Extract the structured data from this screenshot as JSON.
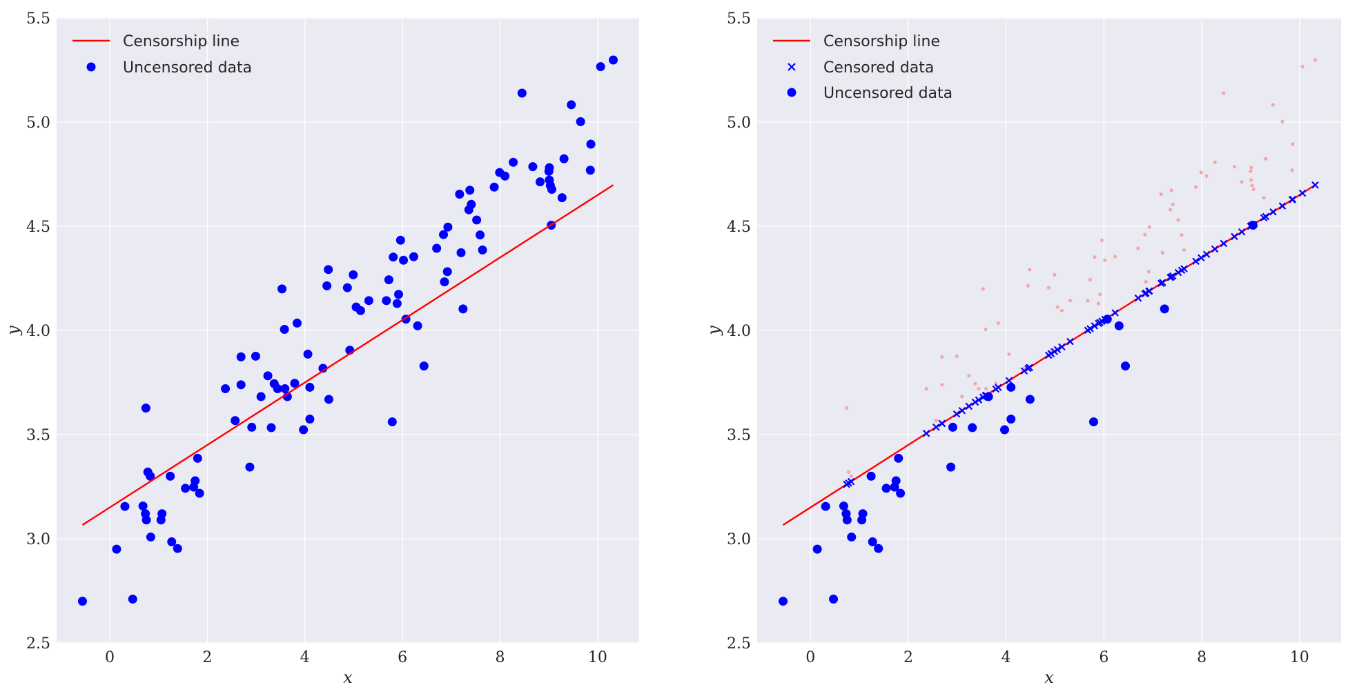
{
  "colors": {
    "background": "#eaeaf2",
    "grid": "#ffffff",
    "line": "#ff0000",
    "points": "#0000ff",
    "faded_points": "#f4a0a0"
  },
  "chart_data": [
    {
      "type": "scatter",
      "panel": "left",
      "xlabel": "x",
      "ylabel": "y",
      "xlim": [
        -1.09,
        10.85
      ],
      "ylim": [
        2.5,
        5.5
      ],
      "xticks": [
        0,
        2,
        4,
        6,
        8,
        10
      ],
      "yticks": [
        2.5,
        3.0,
        3.5,
        4.0,
        4.5,
        5.0,
        5.5
      ],
      "ytick_labels": [
        "2.5",
        "3.0",
        "3.5",
        "4.0",
        "4.5",
        "5.0",
        "5.5"
      ],
      "grid": true,
      "legend_position": "top-left",
      "legend": [
        "Censorship line",
        "Uncensored data"
      ],
      "series": [
        "line",
        "all"
      ]
    },
    {
      "type": "scatter",
      "panel": "right",
      "xlabel": "x",
      "ylabel": "y",
      "xlim": [
        -1.09,
        10.85
      ],
      "ylim": [
        2.5,
        5.5
      ],
      "xticks": [
        0,
        2,
        4,
        6,
        8,
        10
      ],
      "yticks": [
        2.5,
        3.0,
        3.5,
        4.0,
        4.5,
        5.0,
        5.5
      ],
      "ytick_labels": [
        "2.5",
        "3.0",
        "3.5",
        "4.0",
        "4.5",
        "5.0",
        "5.5"
      ],
      "grid": true,
      "legend_position": "top-left",
      "legend": [
        "Censorship line",
        "Censored data",
        "Uncensored data"
      ],
      "series": [
        "line",
        "censored",
        "uncensored",
        "faded_original"
      ]
    }
  ],
  "censorship_line": {
    "intercept": 3.15,
    "slope": 0.15,
    "x_range": [
      -0.56,
      10.32
    ]
  },
  "points": [
    [
      -0.56,
      2.7
    ],
    [
      0.14,
      2.95
    ],
    [
      0.47,
      2.71
    ],
    [
      0.31,
      3.155
    ],
    [
      0.68,
      3.157
    ],
    [
      0.73,
      3.12
    ],
    [
      0.75,
      3.09
    ],
    [
      0.74,
      3.627
    ],
    [
      0.78,
      3.32
    ],
    [
      0.83,
      3.3
    ],
    [
      0.84,
      3.008
    ],
    [
      1.05,
      3.09
    ],
    [
      1.07,
      3.12
    ],
    [
      1.24,
      3.3
    ],
    [
      1.27,
      2.985
    ],
    [
      1.39,
      2.953
    ],
    [
      1.55,
      3.242
    ],
    [
      1.72,
      3.248
    ],
    [
      1.75,
      3.278
    ],
    [
      1.8,
      3.386
    ],
    [
      1.84,
      3.218
    ],
    [
      2.37,
      3.72
    ],
    [
      2.57,
      3.567
    ],
    [
      2.69,
      3.739
    ],
    [
      2.69,
      3.873
    ],
    [
      2.87,
      3.344
    ],
    [
      2.91,
      3.535
    ],
    [
      2.99,
      3.876
    ],
    [
      3.1,
      3.682
    ],
    [
      3.24,
      3.782
    ],
    [
      3.31,
      3.533
    ],
    [
      3.37,
      3.744
    ],
    [
      3.44,
      3.72
    ],
    [
      3.53,
      4.199
    ],
    [
      3.58,
      4.005
    ],
    [
      3.59,
      3.72
    ],
    [
      3.64,
      3.682
    ],
    [
      3.79,
      3.746
    ],
    [
      3.84,
      4.035
    ],
    [
      3.97,
      3.523
    ],
    [
      4.06,
      3.886
    ],
    [
      4.1,
      3.574
    ],
    [
      4.1,
      3.727
    ],
    [
      4.37,
      3.818
    ],
    [
      4.45,
      4.214
    ],
    [
      4.48,
      4.292
    ],
    [
      4.49,
      3.669
    ],
    [
      4.87,
      4.205
    ],
    [
      4.92,
      3.905
    ],
    [
      4.99,
      4.267
    ],
    [
      5.05,
      4.112
    ],
    [
      5.14,
      4.095
    ],
    [
      5.31,
      4.143
    ],
    [
      5.67,
      4.143
    ],
    [
      5.72,
      4.243
    ],
    [
      5.79,
      3.561
    ],
    [
      5.81,
      4.352
    ],
    [
      5.89,
      4.129
    ],
    [
      5.92,
      4.173
    ],
    [
      5.96,
      4.433
    ],
    [
      6.02,
      4.337
    ],
    [
      6.07,
      4.054
    ],
    [
      6.23,
      4.354
    ],
    [
      6.31,
      4.022
    ],
    [
      6.44,
      3.829
    ],
    [
      6.7,
      4.394
    ],
    [
      6.84,
      4.46
    ],
    [
      6.86,
      4.233
    ],
    [
      6.92,
      4.282
    ],
    [
      6.93,
      4.496
    ],
    [
      7.17,
      4.654
    ],
    [
      7.2,
      4.373
    ],
    [
      7.24,
      4.103
    ],
    [
      7.36,
      4.579
    ],
    [
      7.38,
      4.673
    ],
    [
      7.41,
      4.605
    ],
    [
      7.52,
      4.53
    ],
    [
      7.59,
      4.458
    ],
    [
      7.64,
      4.386
    ],
    [
      7.88,
      4.688
    ],
    [
      7.99,
      4.758
    ],
    [
      8.1,
      4.741
    ],
    [
      8.27,
      4.807
    ],
    [
      8.45,
      5.139
    ],
    [
      8.67,
      4.786
    ],
    [
      8.82,
      4.713
    ],
    [
      9.0,
      4.764
    ],
    [
      9.01,
      4.781
    ],
    [
      9.01,
      4.722
    ],
    [
      9.03,
      4.696
    ],
    [
      9.06,
      4.677
    ],
    [
      9.05,
      4.505
    ],
    [
      9.27,
      4.637
    ],
    [
      9.31,
      4.824
    ],
    [
      9.46,
      5.083
    ],
    [
      9.65,
      5.002
    ],
    [
      9.85,
      4.769
    ],
    [
      9.86,
      4.894
    ],
    [
      10.06,
      5.266
    ],
    [
      10.32,
      5.298
    ]
  ]
}
